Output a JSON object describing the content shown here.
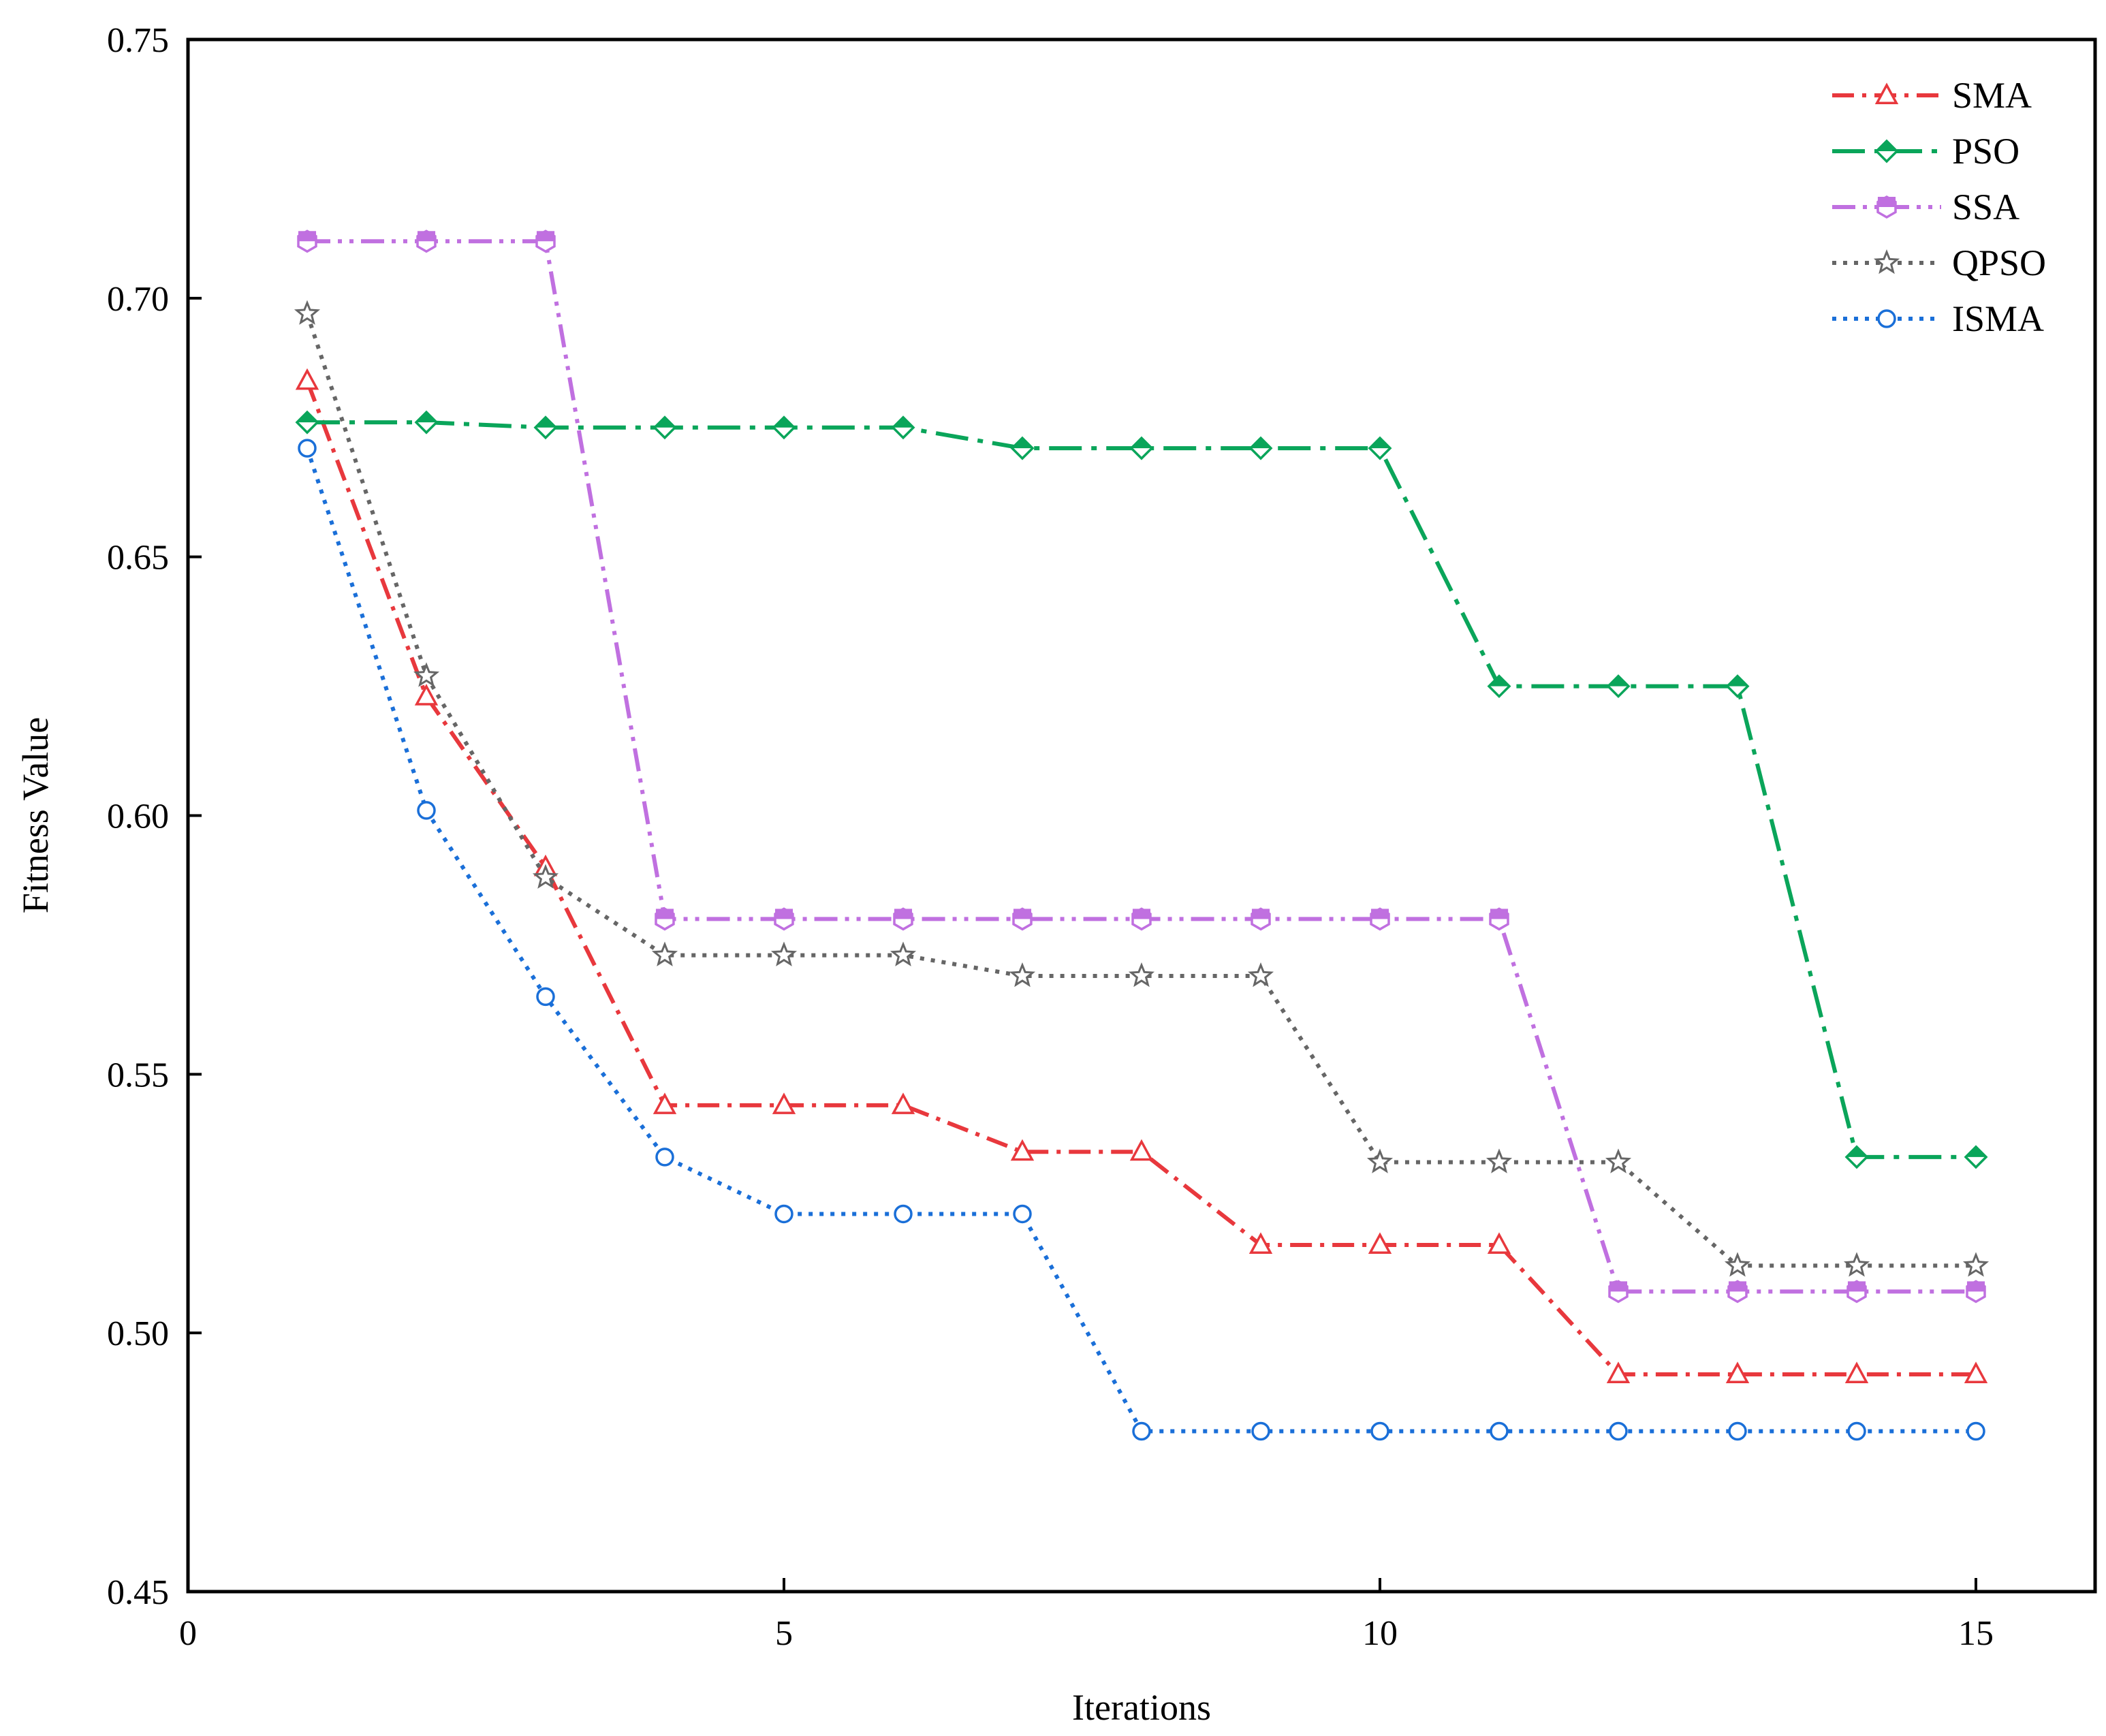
{
  "chart_data": {
    "type": "line",
    "title": "",
    "xlabel": "Iterations",
    "ylabel": "Fitness Value",
    "xlim": [
      0,
      16
    ],
    "ylim": [
      0.45,
      0.75
    ],
    "xticks": [
      0,
      5,
      10,
      15
    ],
    "xtick_labels": [
      "0",
      "5",
      "10",
      "15"
    ],
    "yticks": [
      0.45,
      0.5,
      0.55,
      0.6,
      0.65,
      0.7,
      0.75
    ],
    "ytick_labels": [
      "0.45",
      "0.50",
      "0.55",
      "0.60",
      "0.65",
      "0.70",
      "0.75"
    ],
    "grid": false,
    "legend_position": "top-right",
    "x": [
      1,
      2,
      3,
      4,
      5,
      6,
      7,
      8,
      9,
      10,
      11,
      12,
      13,
      14,
      15
    ],
    "series": [
      {
        "name": "SMA",
        "color": "#e8383d",
        "marker": "triangle",
        "line_style": "dash-dot",
        "values": [
          0.684,
          0.623,
          0.59,
          0.544,
          0.544,
          0.544,
          0.535,
          0.535,
          0.517,
          0.517,
          0.517,
          0.492,
          0.492,
          0.492,
          0.492
        ]
      },
      {
        "name": "PSO",
        "color": "#0aa55a",
        "marker": "diamond",
        "line_style": "long-dash-dot",
        "values": [
          0.676,
          0.676,
          0.675,
          0.675,
          0.675,
          0.675,
          0.671,
          0.671,
          0.671,
          0.671,
          0.625,
          0.625,
          0.625,
          0.534,
          0.534
        ]
      },
      {
        "name": "SSA",
        "color": "#c070e0",
        "marker": "hexagon",
        "line_style": "dash-dot-dot",
        "values": [
          0.711,
          0.711,
          0.711,
          0.58,
          0.58,
          0.58,
          0.58,
          0.58,
          0.58,
          0.58,
          0.58,
          0.508,
          0.508,
          0.508,
          0.508
        ]
      },
      {
        "name": "QPSO",
        "color": "#666666",
        "marker": "star",
        "line_style": "dotted",
        "values": [
          0.697,
          0.627,
          0.588,
          0.573,
          0.573,
          0.573,
          0.569,
          0.569,
          0.569,
          0.533,
          0.533,
          0.533,
          0.513,
          0.513,
          0.513
        ]
      },
      {
        "name": "ISMA",
        "color": "#1a6fd8",
        "marker": "circle",
        "line_style": "dotted",
        "values": [
          0.671,
          0.601,
          0.565,
          0.534,
          0.523,
          0.523,
          0.523,
          0.481,
          0.481,
          0.481,
          0.481,
          0.481,
          0.481,
          0.481,
          0.481
        ]
      }
    ]
  }
}
